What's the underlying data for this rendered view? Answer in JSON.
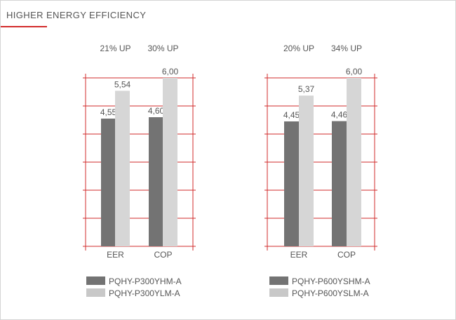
{
  "title": "HIGHER ENERGY EFFICIENCY",
  "colors": {
    "accent": "#d22b2b",
    "dark_bar": "#737373",
    "light_bar": "#d6d6d6",
    "text": "#555555"
  },
  "chart_data": [
    {
      "type": "bar",
      "categories": [
        "EER",
        "COP"
      ],
      "series": [
        {
          "name": "PQHY-P300YHM-A",
          "values": [
            4.55,
            4.6
          ],
          "labels": [
            "4,55",
            "4,60"
          ]
        },
        {
          "name": "PQHY-P300YLM-A",
          "values": [
            5.54,
            6.0
          ],
          "labels": [
            "5,54",
            "6,00"
          ]
        }
      ],
      "improvements": [
        "21% UP",
        "30% UP"
      ],
      "ylim": [
        0,
        6
      ],
      "grid": true,
      "legend": "bottom"
    },
    {
      "type": "bar",
      "categories": [
        "EER",
        "COP"
      ],
      "series": [
        {
          "name": "PQHY-P600YSHM-A",
          "values": [
            4.45,
            4.46
          ],
          "labels": [
            "4,45",
            "4,46"
          ]
        },
        {
          "name": "PQHY-P600YSLM-A",
          "values": [
            5.37,
            6.0
          ],
          "labels": [
            "5,37",
            "6,00"
          ]
        }
      ],
      "improvements": [
        "20% UP",
        "34% UP"
      ],
      "ylim": [
        0,
        6
      ],
      "grid": true,
      "legend": "bottom"
    }
  ]
}
